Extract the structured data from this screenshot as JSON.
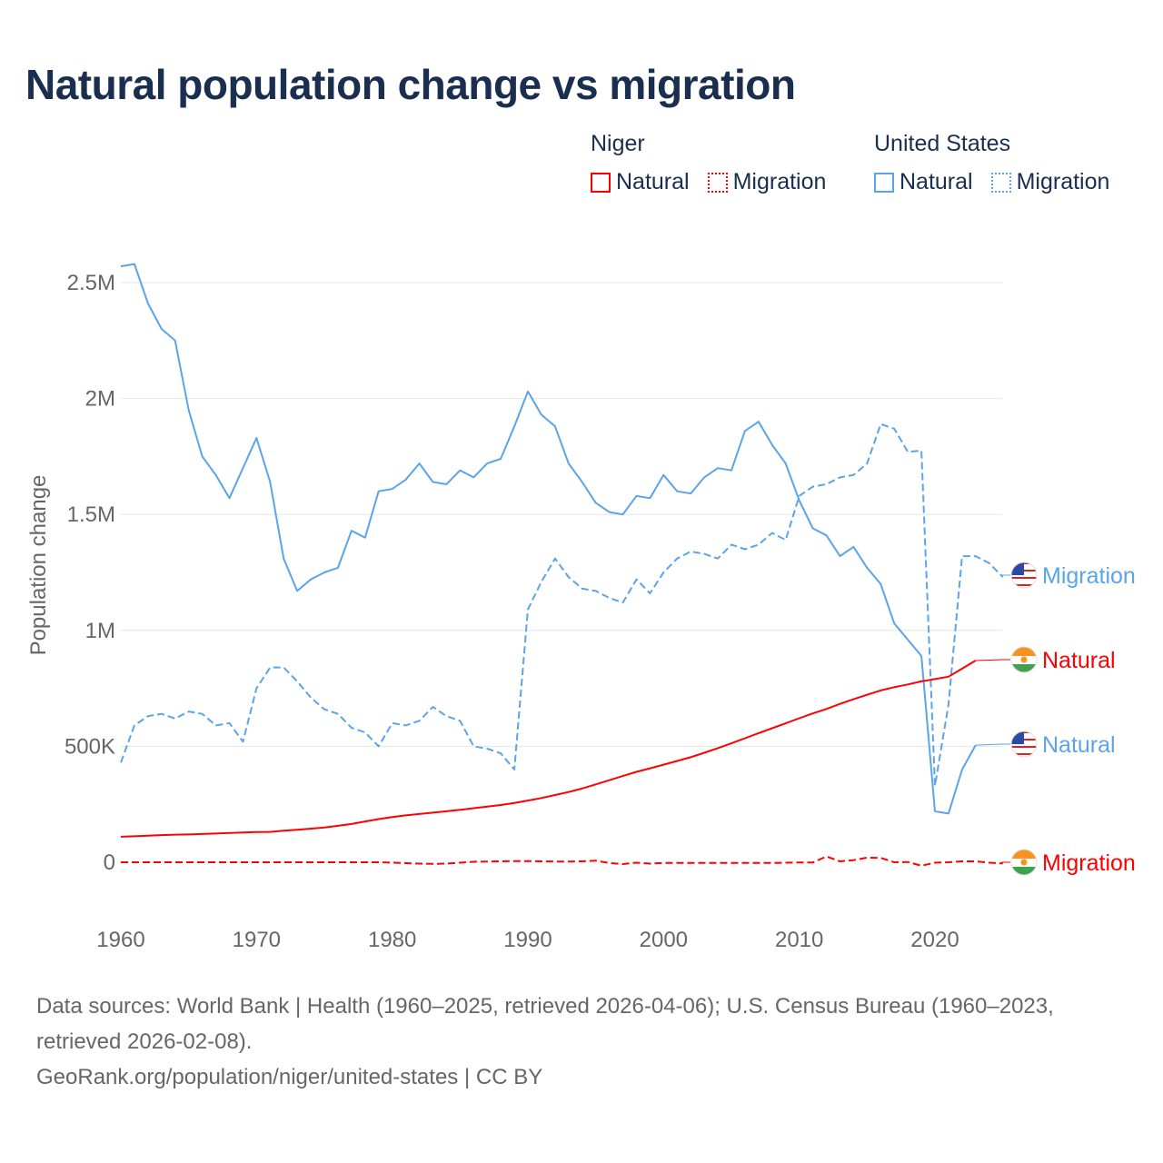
{
  "title": "Natural population change vs migration",
  "legend": {
    "groups": [
      {
        "name": "Niger",
        "items": [
          {
            "label": "Natural",
            "style": "solid",
            "color": "#ff0000"
          },
          {
            "label": "Migration",
            "style": "dotted",
            "color": "#ff0000"
          }
        ]
      },
      {
        "name": "United States",
        "items": [
          {
            "label": "Natural",
            "style": "solid",
            "color": "#5ba4ea"
          },
          {
            "label": "Migration",
            "style": "dotted",
            "color": "#5ba4ea"
          }
        ]
      }
    ]
  },
  "chart_data": {
    "type": "line",
    "title": "Natural population change vs migration",
    "xlabel": "",
    "ylabel": "Population change",
    "xlim": [
      1960,
      2025
    ],
    "ylim": [
      0,
      2500000
    ],
    "x_ticks": [
      "1960",
      "1970",
      "1980",
      "1990",
      "2000",
      "2010",
      "2020"
    ],
    "y_ticks": [
      {
        "v": 0,
        "label": "0"
      },
      {
        "v": 500000,
        "label": "500K"
      },
      {
        "v": 1000000,
        "label": "1M"
      },
      {
        "v": 1500000,
        "label": "1.5M"
      },
      {
        "v": 2000000,
        "label": "2M"
      },
      {
        "v": 2500000,
        "label": "2.5M"
      }
    ],
    "grid": true,
    "series": [
      {
        "name": "United States Natural",
        "end_label": "Natural",
        "flag": "us-flag",
        "color": "#5ba4ea",
        "dash": "solid",
        "start": 1960,
        "values": [
          2570000,
          2580000,
          2410000,
          2300000,
          2250000,
          1950000,
          1750000,
          1670000,
          1570000,
          1700000,
          1830000,
          1640000,
          1310000,
          1170000,
          1220000,
          1250000,
          1270000,
          1430000,
          1400000,
          1600000,
          1610000,
          1650000,
          1720000,
          1640000,
          1630000,
          1690000,
          1660000,
          1720000,
          1740000,
          1880000,
          2030000,
          1930000,
          1880000,
          1720000,
          1640000,
          1550000,
          1510000,
          1500000,
          1580000,
          1570000,
          1670000,
          1600000,
          1590000,
          1660000,
          1700000,
          1690000,
          1860000,
          1900000,
          1800000,
          1720000,
          1560000,
          1440000,
          1410000,
          1320000,
          1360000,
          1270000,
          1200000,
          1030000,
          960000,
          890000,
          220000,
          210000,
          400000,
          505000
        ]
      },
      {
        "name": "United States Migration",
        "end_label": "Migration",
        "flag": "us-flag",
        "color": "#5ba4ea",
        "dash": "dashed",
        "start": 1960,
        "values": [
          430000,
          590000,
          630000,
          640000,
          620000,
          650000,
          640000,
          590000,
          600000,
          520000,
          750000,
          840000,
          840000,
          780000,
          710000,
          660000,
          640000,
          580000,
          560000,
          500000,
          600000,
          590000,
          610000,
          670000,
          630000,
          610000,
          500000,
          490000,
          470000,
          400000,
          1090000,
          1210000,
          1310000,
          1230000,
          1180000,
          1170000,
          1140000,
          1120000,
          1220000,
          1160000,
          1250000,
          1310000,
          1340000,
          1330000,
          1310000,
          1370000,
          1350000,
          1370000,
          1420000,
          1390000,
          1580000,
          1620000,
          1630000,
          1660000,
          1670000,
          1720000,
          1890000,
          1870000,
          1770000,
          1775000,
          330000,
          680000,
          1320000,
          1320000,
          1290000,
          1230000
        ]
      },
      {
        "name": "Niger Natural",
        "end_label": "Natural",
        "flag": "niger-flag",
        "color": "#ff0000",
        "dash": "solid",
        "start": 1960,
        "values": [
          110000,
          112000,
          115000,
          117000,
          119000,
          120000,
          122000,
          124000,
          126000,
          128000,
          130000,
          131000,
          136000,
          140000,
          145000,
          150000,
          157000,
          165000,
          176000,
          186000,
          195000,
          202000,
          208000,
          214000,
          220000,
          226000,
          233000,
          240000,
          247000,
          256000,
          266000,
          277000,
          290000,
          303000,
          318000,
          336000,
          354000,
          372000,
          390000,
          405000,
          421000,
          437000,
          453000,
          472000,
          492000,
          513000,
          535000,
          557000,
          578000,
          599000,
          621000,
          642000,
          661000,
          683000,
          703000,
          722000,
          741000,
          755000,
          767000,
          780000,
          790000,
          800000,
          835000,
          870000
        ]
      },
      {
        "name": "Niger Migration",
        "end_label": "Migration",
        "flag": "niger-flag",
        "color": "#ff0000",
        "dash": "dashed",
        "start": 1960,
        "values": [
          0,
          0,
          0,
          0,
          0,
          0,
          0,
          0,
          0,
          0,
          0,
          0,
          0,
          0,
          0,
          0,
          0,
          0,
          0,
          0,
          -2000,
          -4000,
          -6000,
          -7000,
          -6000,
          -2000,
          2000,
          3000,
          4000,
          5000,
          5000,
          4000,
          3000,
          3000,
          4000,
          7000,
          -3000,
          -8000,
          -2000,
          -6000,
          -3000,
          -3000,
          -3000,
          -3000,
          -3000,
          -3000,
          -3000,
          -3000,
          -3000,
          -2000,
          -1000,
          -1000,
          25000,
          4000,
          9000,
          20000,
          19000,
          0,
          1000,
          -15000,
          -2000,
          0,
          4000,
          4000,
          -2000,
          -5000
        ]
      }
    ]
  },
  "footer": {
    "sources": "Data sources: World Bank | Health (1960–2025, retrieved 2026-04-06); U.S. Census Bureau (1960–2023, retrieved 2026-02-08).",
    "link": "GeoRank.org/population/niger/united-states | CC BY"
  }
}
